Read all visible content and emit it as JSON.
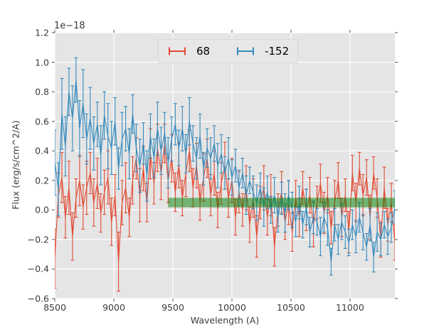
{
  "figure": {
    "offset_text": "1e−18",
    "xlabel": "Wavelength (A)",
    "ylabel": "Flux (erg/s/cm^2/A)"
  },
  "chart_data": {
    "type": "line",
    "subtype": "errorbar-spectrum",
    "title": "",
    "xlabel": "Wavelength (A)",
    "ylabel": "Flux (erg/s/cm^2/A)",
    "offset_text": "1e−18",
    "xlim": [
      8500,
      11380
    ],
    "ylim": [
      -0.6,
      1.2
    ],
    "xticks": [
      8500,
      9000,
      9500,
      10000,
      10500,
      11000
    ],
    "yticks": [
      -0.6,
      -0.4,
      -0.2,
      0.0,
      0.2,
      0.4,
      0.6,
      0.8,
      1.0,
      1.2
    ],
    "ytick_labels": [
      "−0.6",
      "−0.4",
      "−0.2",
      "0.0",
      "0.2",
      "0.4",
      "0.6",
      "0.8",
      "1.0",
      "1.2"
    ],
    "grid": true,
    "grid_color": "#ffffff",
    "background": "#e5e5e5",
    "tick_color": "#555555",
    "legend_position": "upper center",
    "x_start": 8500,
    "x_step": 30,
    "band": {
      "x0": 9460,
      "x1": 11380,
      "y0": 0.018,
      "y1": 0.082,
      "color": "#008000",
      "opacity": 0.5
    },
    "series": [
      {
        "name": "68",
        "color": "#E24A33",
        "y": [
          -0.33,
          0.1,
          0.22,
          -0.05,
          0.15,
          -0.18,
          0.08,
          0.2,
          0.02,
          0.15,
          0.25,
          0.05,
          0.18,
          -0.02,
          0.12,
          0.22,
          -0.08,
          0.1,
          -0.35,
          0.05,
          0.15,
          -0.05,
          0.2,
          0.35,
          0.1,
          0.28,
          0.05,
          0.38,
          0.18,
          0.42,
          0.25,
          0.45,
          0.2,
          0.35,
          0.12,
          0.3,
          0.08,
          0.25,
          0.4,
          0.15,
          0.3,
          0.05,
          0.22,
          0.35,
          0.1,
          0.25,
          0.0,
          0.18,
          0.3,
          0.08,
          0.2,
          -0.05,
          0.12,
          0.0,
          0.15,
          -0.1,
          0.08,
          -0.18,
          0.05,
          0.15,
          -0.05,
          0.1,
          -0.25,
          0.0,
          0.12,
          -0.08,
          0.05,
          -0.15,
          0.08,
          -0.05,
          0.15,
          0.0,
          0.1,
          -0.1,
          0.05,
          0.18,
          -0.02,
          0.1,
          -0.12,
          0.05,
          0.2,
          -0.05,
          0.1,
          -0.15,
          0.25,
          0.05,
          0.28,
          0.1,
          0.22,
          -0.05,
          0.25,
          0.08,
          -0.2,
          0.15,
          -0.1,
          0.05,
          -0.22
        ],
        "yerr": [
          0.2,
          0.15,
          0.17,
          0.14,
          0.18,
          0.16,
          0.13,
          0.17,
          0.15,
          0.18,
          0.14,
          0.16,
          0.17,
          0.13,
          0.15,
          0.18,
          0.16,
          0.14,
          0.2,
          0.15,
          0.17,
          0.13,
          0.16,
          0.14,
          0.18,
          0.15,
          0.13,
          0.17,
          0.14,
          0.16,
          0.18,
          0.13,
          0.15,
          0.16,
          0.13,
          0.15,
          0.12,
          0.16,
          0.14,
          0.13,
          0.15,
          0.12,
          0.16,
          0.13,
          0.14,
          0.15,
          0.12,
          0.14,
          0.16,
          0.13,
          0.15,
          0.12,
          0.14,
          0.11,
          0.15,
          0.12,
          0.13,
          0.14,
          0.11,
          0.15,
          0.12,
          0.14,
          0.13,
          0.11,
          0.14,
          0.12,
          0.15,
          0.13,
          0.12,
          0.13,
          0.11,
          0.14,
          0.12,
          0.15,
          0.11,
          0.13,
          0.14,
          0.12,
          0.11,
          0.15,
          0.12,
          0.13,
          0.11,
          0.14,
          0.12,
          0.13,
          0.11,
          0.14,
          0.12,
          0.15,
          0.11,
          0.13,
          0.12,
          0.14,
          0.11,
          0.13,
          0.12
        ]
      },
      {
        "name": "-152",
        "color": "#348ABD",
        "y": [
          0.32,
          0.14,
          0.65,
          0.43,
          0.8,
          0.62,
          0.88,
          0.55,
          0.72,
          0.48,
          0.62,
          0.45,
          0.58,
          0.37,
          0.64,
          0.5,
          0.42,
          0.6,
          0.28,
          0.48,
          0.55,
          0.38,
          0.65,
          0.42,
          0.3,
          0.45,
          0.23,
          0.5,
          0.35,
          0.55,
          0.4,
          0.52,
          0.32,
          0.48,
          0.58,
          0.42,
          0.55,
          0.38,
          0.6,
          0.45,
          0.35,
          0.5,
          0.28,
          0.42,
          0.35,
          0.45,
          0.3,
          0.38,
          0.25,
          0.35,
          0.22,
          0.3,
          0.15,
          0.25,
          0.1,
          0.2,
          0.12,
          0.05,
          0.15,
          0.02,
          0.12,
          0.0,
          0.1,
          -0.05,
          0.08,
          -0.02,
          0.1,
          0.0,
          -0.08,
          0.05,
          -0.1,
          0.02,
          -0.15,
          -0.05,
          -0.08,
          -0.18,
          -0.05,
          -0.12,
          -0.35,
          -0.1,
          -0.2,
          -0.08,
          -0.15,
          -0.22,
          -0.1,
          -0.18,
          -0.05,
          -0.15,
          -0.25,
          -0.1,
          -0.32,
          -0.15,
          -0.2,
          -0.1,
          -0.18,
          -0.12,
          0.02
        ],
        "yerr": [
          0.22,
          0.18,
          0.24,
          0.2,
          0.16,
          0.22,
          0.15,
          0.19,
          0.23,
          0.17,
          0.21,
          0.18,
          0.15,
          0.2,
          0.16,
          0.22,
          0.18,
          0.16,
          0.14,
          0.18,
          0.15,
          0.17,
          0.13,
          0.16,
          0.18,
          0.14,
          0.17,
          0.15,
          0.13,
          0.18,
          0.16,
          0.14,
          0.17,
          0.15,
          0.14,
          0.12,
          0.15,
          0.13,
          0.16,
          0.12,
          0.14,
          0.15,
          0.11,
          0.13,
          0.14,
          0.12,
          0.15,
          0.13,
          0.11,
          0.14,
          0.12,
          0.11,
          0.12,
          0.1,
          0.13,
          0.09,
          0.11,
          0.12,
          0.1,
          0.13,
          0.11,
          0.09,
          0.12,
          0.1,
          0.11,
          0.13,
          0.1,
          0.12,
          0.1,
          0.11,
          0.09,
          0.12,
          0.1,
          0.11,
          0.09,
          0.13,
          0.1,
          0.12,
          0.09,
          0.11,
          0.1,
          0.12,
          0.11,
          0.09,
          0.1,
          0.11,
          0.1,
          0.12,
          0.09,
          0.11,
          0.1,
          0.13,
          0.11,
          0.09,
          0.12,
          0.1,
          0.11
        ]
      }
    ]
  }
}
